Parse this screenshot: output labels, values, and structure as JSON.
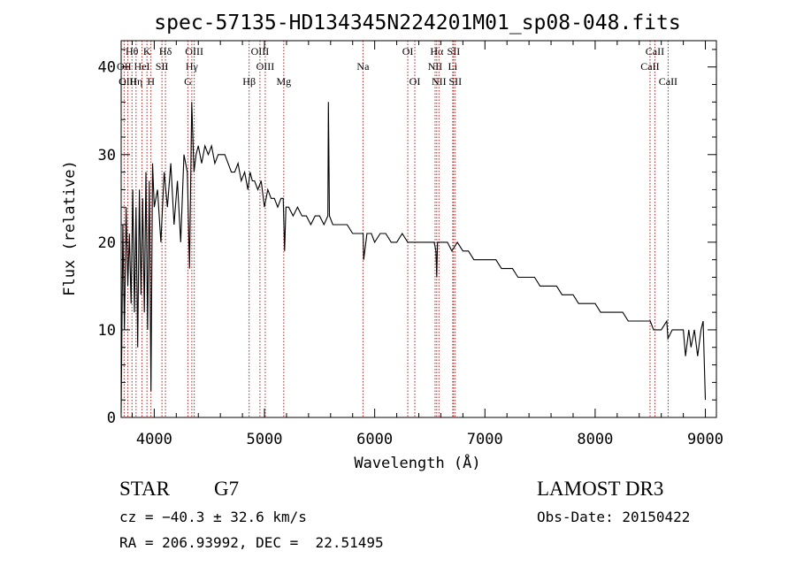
{
  "chart_data": {
    "type": "line",
    "title": "spec-57135-HD134345N224201M01_sp08-048.fits",
    "xlabel": "Wavelength (Å)",
    "ylabel": "Flux (relative)",
    "xlim": [
      3700,
      9100
    ],
    "ylim": [
      0,
      43
    ],
    "x_ticks": [
      4000,
      5000,
      6000,
      7000,
      8000,
      9000
    ],
    "x_tick_labels": [
      "4000",
      "5000",
      "6000",
      "7000",
      "8000",
      "9000"
    ],
    "y_ticks": [
      0,
      10,
      20,
      30,
      40
    ],
    "y_tick_labels": [
      "0",
      "10",
      "20",
      "30",
      "40"
    ],
    "series": [
      {
        "name": "flux",
        "x": [
          3700,
          3715,
          3730,
          3745,
          3760,
          3775,
          3790,
          3805,
          3820,
          3835,
          3850,
          3865,
          3880,
          3895,
          3910,
          3925,
          3940,
          3955,
          3970,
          3985,
          4000,
          4030,
          4060,
          4090,
          4120,
          4150,
          4180,
          4210,
          4240,
          4270,
          4300,
          4320,
          4340,
          4360,
          4380,
          4400,
          4430,
          4460,
          4490,
          4520,
          4550,
          4580,
          4610,
          4640,
          4670,
          4700,
          4730,
          4760,
          4790,
          4820,
          4850,
          4870,
          4890,
          4910,
          4940,
          4970,
          5000,
          5030,
          5060,
          5090,
          5120,
          5150,
          5170,
          5183,
          5195,
          5220,
          5260,
          5300,
          5340,
          5380,
          5420,
          5460,
          5500,
          5540,
          5575,
          5580,
          5590,
          5620,
          5660,
          5700,
          5750,
          5800,
          5850,
          5890,
          5895,
          5900,
          5930,
          5970,
          6000,
          6050,
          6100,
          6150,
          6200,
          6250,
          6300,
          6350,
          6400,
          6450,
          6500,
          6540,
          6556,
          6563,
          6570,
          6590,
          6620,
          6660,
          6700,
          6750,
          6800,
          6850,
          6900,
          6950,
          7000,
          7050,
          7100,
          7150,
          7200,
          7250,
          7300,
          7350,
          7400,
          7450,
          7500,
          7550,
          7600,
          7650,
          7700,
          7750,
          7800,
          7850,
          7900,
          7950,
          8000,
          8050,
          8100,
          8150,
          8200,
          8250,
          8300,
          8350,
          8400,
          8450,
          8500,
          8530,
          8560,
          8600,
          8650,
          8660,
          8700,
          8750,
          8800,
          8820,
          8850,
          8870,
          8900,
          8930,
          8960,
          8980,
          9000
        ],
        "y": [
          0.5,
          22,
          10,
          24,
          15,
          21,
          13,
          26,
          12,
          24,
          8,
          26,
          14,
          25,
          12,
          28,
          10,
          27,
          3,
          29,
          24,
          26,
          20,
          28,
          24,
          29,
          22,
          27,
          20,
          30,
          28,
          17,
          36,
          28,
          30,
          31,
          29,
          31,
          30,
          31,
          29,
          30,
          30,
          30,
          29,
          28,
          28,
          29,
          27,
          28,
          26,
          28,
          27,
          27,
          26,
          27,
          24,
          26,
          25,
          25,
          24,
          25,
          25,
          19,
          24,
          24,
          23,
          24,
          23,
          23,
          22,
          23,
          23,
          22,
          23,
          36,
          23,
          22,
          22,
          22,
          22,
          21,
          21,
          21,
          21,
          18,
          21,
          21,
          20,
          21,
          21,
          20,
          20,
          21,
          20,
          20,
          20,
          20,
          20,
          20,
          19,
          16,
          20,
          20,
          20,
          20,
          19,
          20,
          19,
          19,
          18,
          18,
          18,
          18,
          18,
          17,
          17,
          17,
          16,
          16,
          16,
          16,
          15,
          15,
          15,
          15,
          14,
          14,
          14,
          13,
          13,
          13,
          13,
          12,
          12,
          12,
          12,
          12,
          11,
          11,
          11,
          11,
          11,
          10,
          10,
          10,
          11,
          9,
          10,
          10,
          10,
          7,
          10,
          8,
          10,
          7,
          10,
          11,
          2
        ]
      }
    ],
    "lines": [
      {
        "label": "Hθ",
        "x": 3798,
        "row": 1
      },
      {
        "label": "K",
        "x": 3934,
        "row": 1
      },
      {
        "label": "Hδ",
        "x": 4102,
        "row": 1
      },
      {
        "label": "OII",
        "x": 3727,
        "row": 2
      },
      {
        "label": "HeI",
        "x": 3889,
        "row": 2
      },
      {
        "label": "SII",
        "x": 4070,
        "row": 2
      },
      {
        "label": "OIII",
        "x": 3760,
        "row": 3
      },
      {
        "label": "Hη",
        "x": 3835,
        "row": 3
      },
      {
        "label": "H",
        "x": 3970,
        "row": 3
      },
      {
        "label": "OIII",
        "x": 4363,
        "row": 1
      },
      {
        "label": "Hγ",
        "x": 4341,
        "row": 2
      },
      {
        "label": "G",
        "x": 4305,
        "row": 3
      },
      {
        "label": "OIII",
        "x": 4959,
        "row": 1
      },
      {
        "label": "OIII",
        "x": 5007,
        "row": 2
      },
      {
        "label": "Hβ",
        "x": 4861,
        "row": 3
      },
      {
        "label": "Mg",
        "x": 5175,
        "row": 3
      },
      {
        "label": "Na",
        "x": 5894,
        "row": 2
      },
      {
        "label": "OI",
        "x": 6300,
        "row": 1
      },
      {
        "label": "OI",
        "x": 6364,
        "row": 3
      },
      {
        "label": "Hα",
        "x": 6563,
        "row": 1
      },
      {
        "label": "SII",
        "x": 6716,
        "row": 1
      },
      {
        "label": "NII",
        "x": 6548,
        "row": 2
      },
      {
        "label": "Li",
        "x": 6708,
        "row": 2
      },
      {
        "label": "NII",
        "x": 6583,
        "row": 3
      },
      {
        "label": "SII",
        "x": 6731,
        "row": 3
      },
      {
        "label": "CaII",
        "x": 8542,
        "row": 1
      },
      {
        "label": "CaII",
        "x": 8498,
        "row": 2
      },
      {
        "label": "CaII",
        "x": 8662,
        "row": 3
      }
    ]
  },
  "info": {
    "class_label": "STAR",
    "subclass": "G7",
    "survey": "LAMOST DR3",
    "cz": "cz = −40.3 ± 32.6 km/s",
    "obs_date": "Obs-Date: 20150422",
    "coords": "RA = 206.93992, DEC =  22.51495"
  },
  "colors": {
    "spectrum": "#000000",
    "line_markers": "#b22222",
    "axes": "#000000"
  }
}
